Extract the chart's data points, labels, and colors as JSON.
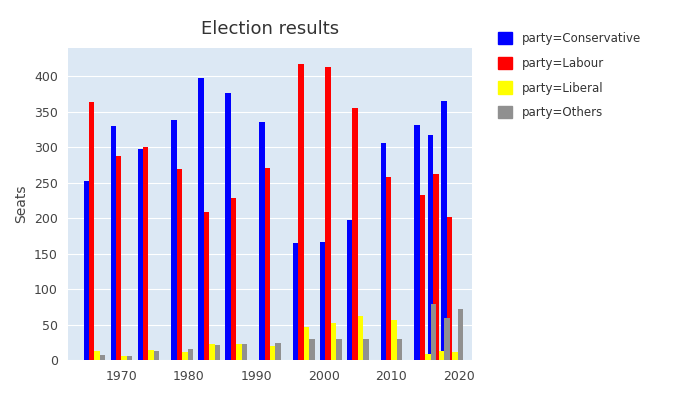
{
  "title": "Election results",
  "ylabel": "Seats",
  "elections": [
    1966,
    1970,
    1974,
    1979,
    1983,
    1987,
    1992,
    1997,
    2001,
    2005,
    2010,
    2015,
    2017,
    2019
  ],
  "conservative": [
    253,
    330,
    297,
    339,
    397,
    376,
    336,
    165,
    166,
    198,
    306,
    331,
    317,
    365
  ],
  "labour": [
    364,
    288,
    301,
    269,
    209,
    229,
    271,
    418,
    413,
    356,
    258,
    232,
    262,
    202
  ],
  "liberal": [
    12,
    6,
    14,
    11,
    23,
    22,
    20,
    46,
    52,
    62,
    57,
    8,
    12,
    11
  ],
  "others": [
    7,
    6,
    13,
    16,
    21,
    23,
    24,
    30,
    29,
    30,
    29,
    79,
    59,
    72
  ],
  "colors": {
    "conservative": "#0000FF",
    "labour": "#FF0000",
    "liberal": "#FFFF00",
    "others": "#909090"
  },
  "bg_color": "#dce8f4",
  "fig_bg": "#ffffff",
  "xlim": [
    1962,
    2022
  ],
  "ylim": [
    0,
    440
  ],
  "xticks": [
    1970,
    1980,
    1990,
    2000,
    2010,
    2020
  ],
  "yticks": [
    0,
    50,
    100,
    150,
    200,
    250,
    300,
    350,
    400
  ]
}
